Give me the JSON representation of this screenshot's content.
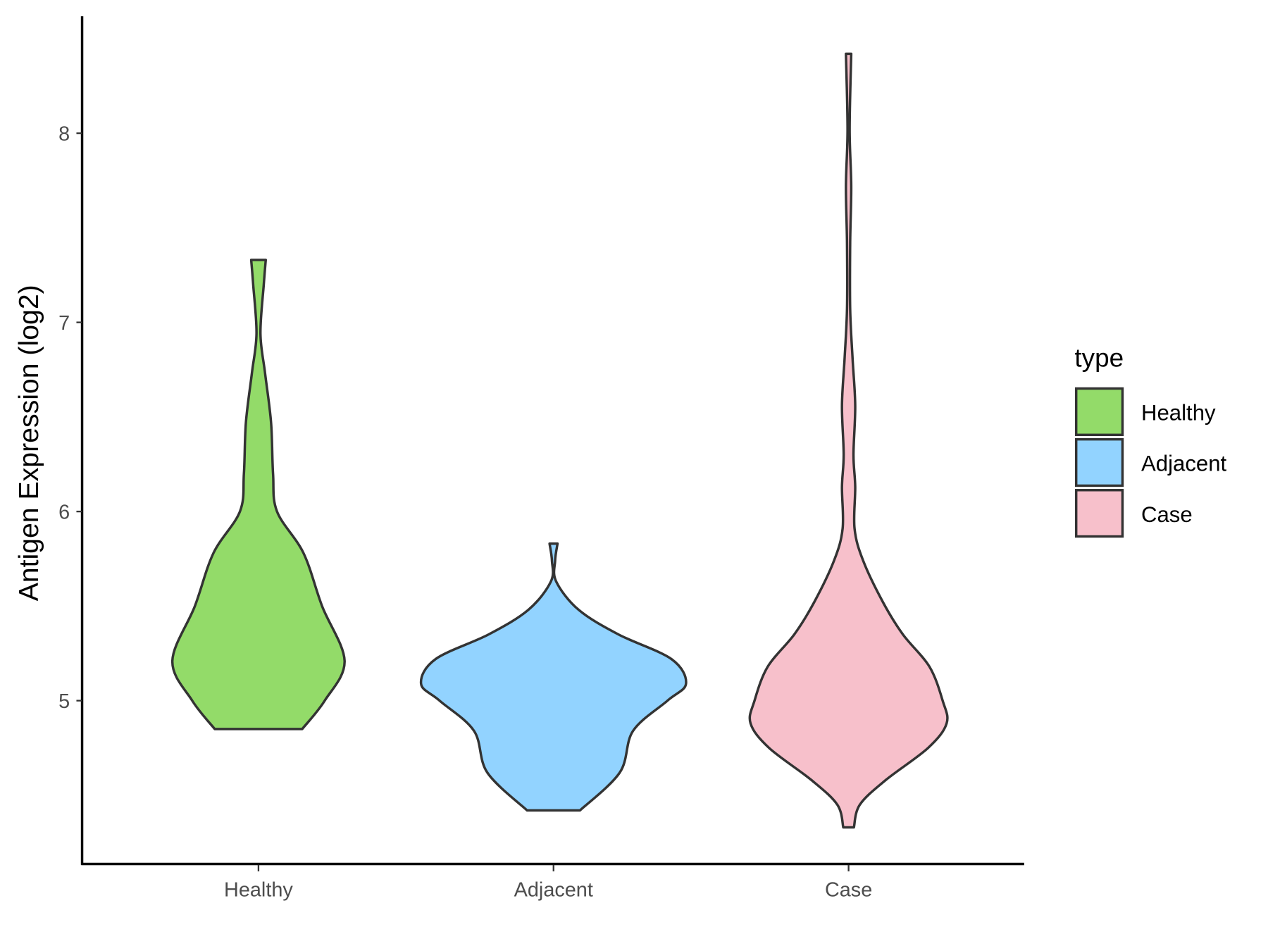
{
  "chart_data": {
    "type": "violin",
    "title": "",
    "xlabel": "",
    "ylabel": "Antigen Expression (log2)",
    "ylim": [
      4.2,
      8.6
    ],
    "yticks": [
      "5",
      "6",
      "7",
      "8"
    ],
    "categories": [
      "Healthy",
      "Adjacent",
      "Case"
    ],
    "legend": {
      "title": "type",
      "position": "right",
      "entries": [
        "Healthy",
        "Adjacent",
        "Case"
      ]
    },
    "grid": false,
    "series": [
      {
        "name": "Healthy",
        "color": "#93DB69",
        "density": [
          [
            4.85,
            0.33
          ],
          [
            5.0,
            0.5
          ],
          [
            5.21,
            0.65
          ],
          [
            5.5,
            0.48
          ],
          [
            5.78,
            0.34
          ],
          [
            6.0,
            0.14
          ],
          [
            6.2,
            0.11
          ],
          [
            6.47,
            0.095
          ],
          [
            6.73,
            0.05
          ],
          [
            6.94,
            0.015
          ],
          [
            7.2,
            0.04
          ],
          [
            7.33,
            0.055
          ]
        ]
      },
      {
        "name": "Adjacent",
        "color": "#92D3FF",
        "density": [
          [
            4.42,
            0.2
          ],
          [
            4.62,
            0.5
          ],
          [
            4.84,
            0.6
          ],
          [
            5.0,
            0.86
          ],
          [
            5.09,
            1.0
          ],
          [
            5.22,
            0.89
          ],
          [
            5.35,
            0.49
          ],
          [
            5.48,
            0.19
          ],
          [
            5.63,
            0.02
          ],
          [
            5.74,
            0.012
          ],
          [
            5.83,
            0.03
          ]
        ]
      },
      {
        "name": "Case",
        "color": "#F7C0CB",
        "density": [
          [
            4.33,
            0.04
          ],
          [
            4.45,
            0.085
          ],
          [
            4.58,
            0.28
          ],
          [
            4.75,
            0.6
          ],
          [
            4.88,
            0.74
          ],
          [
            5.0,
            0.71
          ],
          [
            5.18,
            0.61
          ],
          [
            5.35,
            0.41
          ],
          [
            5.52,
            0.26
          ],
          [
            5.74,
            0.11
          ],
          [
            5.91,
            0.045
          ],
          [
            6.13,
            0.05
          ],
          [
            6.3,
            0.037
          ],
          [
            6.56,
            0.05
          ],
          [
            6.81,
            0.03
          ],
          [
            7.07,
            0.012
          ],
          [
            7.42,
            0.012
          ],
          [
            7.72,
            0.02
          ],
          [
            8.02,
            0.008
          ],
          [
            8.42,
            0.02
          ]
        ]
      }
    ]
  }
}
